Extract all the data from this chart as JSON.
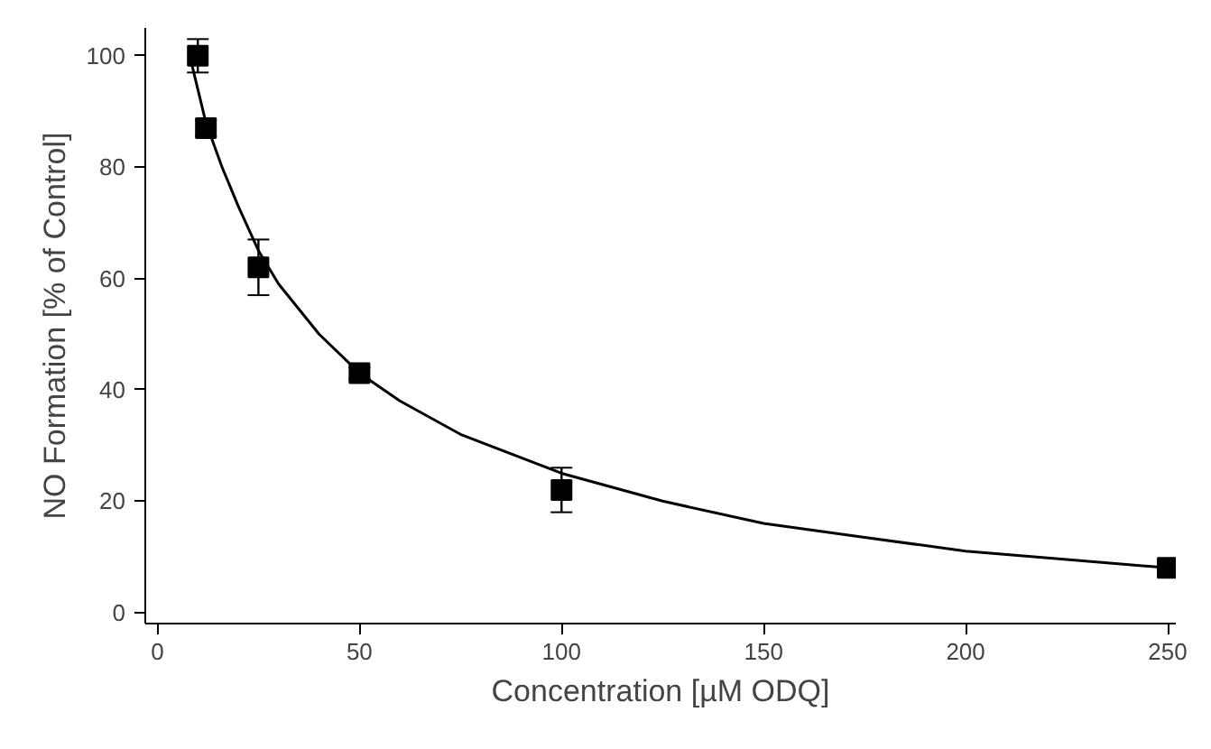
{
  "chart_data": {
    "type": "scatter",
    "xlabel": "Concentration [µM ODQ]",
    "ylabel": "NO Formation [% of Control]",
    "xlim": [
      -3,
      252
    ],
    "ylim": [
      -2,
      105
    ],
    "xticks": [
      0,
      50,
      100,
      150,
      200,
      250
    ],
    "yticks": [
      0,
      20,
      40,
      60,
      80,
      100
    ],
    "grid": false,
    "series": [
      {
        "color": "#000000",
        "marker": "square",
        "x": [
          10,
          12,
          25,
          50,
          100,
          250
        ],
        "values": [
          100,
          87,
          62,
          43,
          22,
          8
        ],
        "errors": [
          3,
          1.5,
          5,
          1,
          4,
          1
        ]
      },
      {
        "type": "line",
        "color": "#000000",
        "marker": "none",
        "line_style": "solid",
        "x": [
          8,
          12,
          16,
          20,
          25,
          30,
          40,
          50,
          60,
          75,
          100,
          125,
          150,
          175,
          200,
          225,
          250
        ],
        "values": [
          100,
          88,
          80,
          73,
          65,
          59,
          50,
          43,
          38,
          32,
          25,
          20,
          16,
          13.5,
          11,
          9.5,
          8
        ]
      }
    ]
  }
}
